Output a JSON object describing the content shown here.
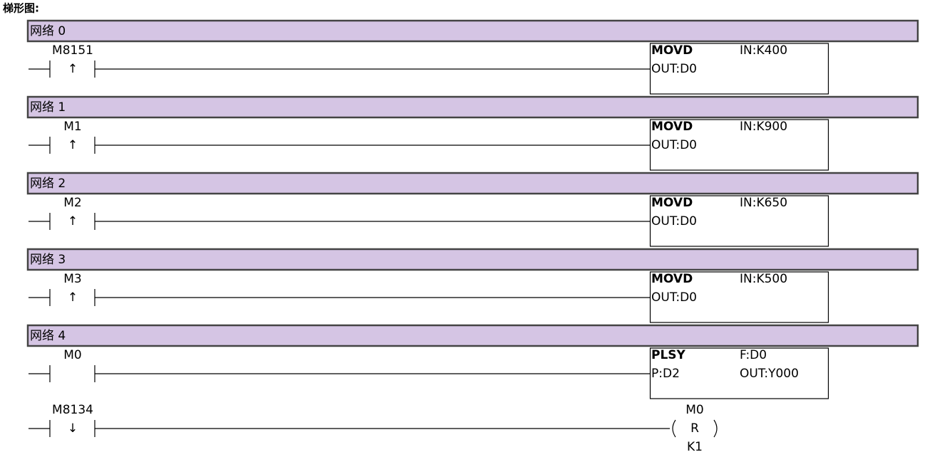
{
  "title": "梯形图:",
  "networks": [
    {
      "label": "网络 0",
      "rungs": [
        {
          "contact": "M8151",
          "edge": "↑",
          "block": {
            "name": "MOVD",
            "params": [
              "IN:K400",
              "OUT:D0"
            ]
          }
        }
      ]
    },
    {
      "label": "网络 1",
      "rungs": [
        {
          "contact": "M1",
          "edge": "↑",
          "block": {
            "name": "MOVD",
            "params": [
              "IN:K900",
              "OUT:D0"
            ]
          }
        }
      ]
    },
    {
      "label": "网络 2",
      "rungs": [
        {
          "contact": "M2",
          "edge": "↑",
          "block": {
            "name": "MOVD",
            "params": [
              "IN:K650",
              "OUT:D0"
            ]
          }
        }
      ]
    },
    {
      "label": "网络 3",
      "rungs": [
        {
          "contact": "M3",
          "edge": "↑",
          "block": {
            "name": "MOVD",
            "params": [
              "IN:K500",
              "OUT:D0"
            ]
          }
        }
      ]
    },
    {
      "label": "网络 4",
      "rungs": [
        {
          "contact": "M0",
          "block": {
            "name": "PLSY",
            "params": [
              "F:D0",
              "P:D2",
              "OUT:Y000"
            ]
          }
        },
        {
          "contact": "M8134",
          "edge": "↓",
          "coil": {
            "target": "M0",
            "op": "R",
            "count": "K1"
          }
        }
      ]
    }
  ]
}
